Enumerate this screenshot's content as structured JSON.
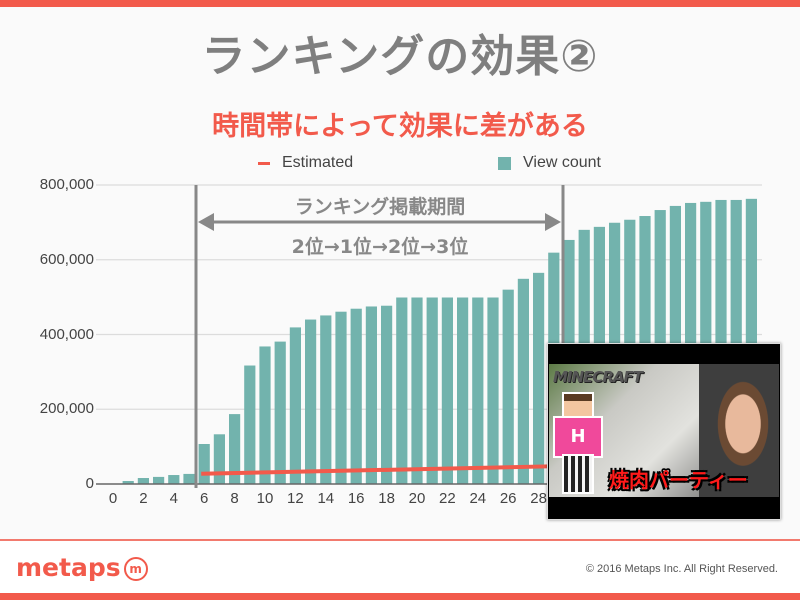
{
  "slide": {
    "title": "ランキングの効果②",
    "subtitle": "時間帯によって効果に差がある"
  },
  "legend": {
    "estimated_label": "Estimated",
    "view_count_label": "View count"
  },
  "annotation": {
    "period_label": "ランキング掲載期間",
    "rank_progression": "2位→1位→2位→3位"
  },
  "thumbnail": {
    "logo_text": "MINECRAFT",
    "shirt_letter": "H",
    "caption": "焼肉パーティー"
  },
  "footer": {
    "logo_text": "metaps",
    "logo_mark": "m",
    "copyright": "© 2016 Metaps Inc. All Right Reserved."
  },
  "colors": {
    "accent": "#f25a4b",
    "bar": "#72b3ad",
    "title_gray": "#7f7f7f",
    "marker_gray": "#888888"
  },
  "chart_data": {
    "type": "bar",
    "title": "",
    "xlabel": "",
    "ylabel": "",
    "ylim": [
      0,
      800000
    ],
    "yticks": [
      0,
      200000,
      400000,
      600000,
      800000
    ],
    "ytick_labels": [
      "0",
      "200,000",
      "400,000",
      "600,000",
      "800,000"
    ],
    "xticks": [
      0,
      2,
      4,
      6,
      8,
      10,
      12,
      14,
      16,
      18,
      20,
      22,
      24,
      26,
      28
    ],
    "xlim": [
      0,
      42
    ],
    "grid": true,
    "legend_position": "top",
    "x": [
      1,
      2,
      3,
      4,
      5,
      6,
      7,
      8,
      9,
      10,
      11,
      12,
      13,
      14,
      15,
      16,
      17,
      18,
      19,
      20,
      21,
      22,
      23,
      24,
      25,
      26,
      27,
      28,
      29,
      30,
      31,
      32,
      33,
      34,
      35,
      36,
      37,
      38,
      39,
      40,
      41,
      42
    ],
    "series": [
      {
        "name": "View count",
        "type": "bar",
        "values": [
          8000,
          16000,
          19000,
          24000,
          27000,
          107000,
          133000,
          187000,
          317000,
          368000,
          381000,
          419000,
          440000,
          451000,
          461000,
          469000,
          475000,
          477000,
          499000,
          499000,
          499000,
          499000,
          499000,
          499000,
          499000,
          520000,
          549000,
          565000,
          619000,
          653000,
          680000,
          688000,
          699000,
          707000,
          717000,
          733000,
          744000,
          752000,
          755000,
          760000,
          760000,
          763000
        ]
      },
      {
        "name": "Estimated",
        "type": "line",
        "x": [
          6,
          28
        ],
        "values": [
          30000,
          50000
        ]
      }
    ],
    "annotations": [
      {
        "type": "vline",
        "x": 5.5,
        "label": ""
      },
      {
        "type": "vline",
        "x": 29.5,
        "label": ""
      },
      {
        "type": "double-arrow",
        "from": 5.5,
        "to": 29.5,
        "y": 700000,
        "text_above": "ランキング掲載期間",
        "text_below": "2位→1位→2位→3位"
      }
    ]
  }
}
